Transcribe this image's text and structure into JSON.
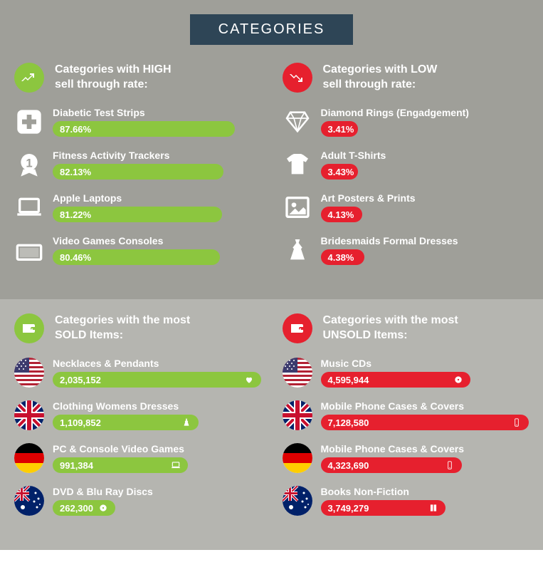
{
  "colors": {
    "green": "#8cc63f",
    "red": "#e6202e",
    "headerBg": "#2e4556",
    "topBg": "#9f9f99",
    "bottomBg": "#b5b5b0",
    "white": "#ffffff"
  },
  "title": "CATEGORIES",
  "top": {
    "left": {
      "heading": "Categories with HIGH\nsell through rate:",
      "items": [
        {
          "label": "Diabetic Test Strips",
          "value": "87.66%",
          "pct": 87.66,
          "icon": "medical"
        },
        {
          "label": "Fitness Activity Trackers",
          "value": "82.13%",
          "pct": 82.13,
          "icon": "medal"
        },
        {
          "label": "Apple Laptops",
          "value": "81.22%",
          "pct": 81.22,
          "icon": "laptop"
        },
        {
          "label": "Video Games Consoles",
          "value": "80.46%",
          "pct": 80.46,
          "icon": "console"
        }
      ]
    },
    "right": {
      "heading": "Categories with LOW\nsell through rate:",
      "items": [
        {
          "label": "Diamond Rings (Engadgement)",
          "value": "3.41%",
          "pct": 18,
          "icon": "diamond"
        },
        {
          "label": "Adult T-Shirts",
          "value": "3.43%",
          "pct": 18,
          "icon": "tshirt"
        },
        {
          "label": "Art Posters & Prints",
          "value": "4.13%",
          "pct": 20,
          "icon": "picture"
        },
        {
          "label": "Bridesmaids Formal Dresses",
          "value": "4.38%",
          "pct": 21,
          "icon": "dress"
        }
      ]
    }
  },
  "bottom": {
    "left": {
      "heading": "Categories with the most\nSOLD Items:",
      "items": [
        {
          "label": "Necklaces & Pendants",
          "value": "2,035,152",
          "pct": 100,
          "flag": "us",
          "miniIcon": "heart"
        },
        {
          "label": "Clothing Womens Dresses",
          "value": "1,109,852",
          "pct": 70,
          "flag": "uk",
          "miniIcon": "dress"
        },
        {
          "label": "PC & Console Video Games",
          "value": "991,384",
          "pct": 65,
          "flag": "de",
          "miniIcon": "laptop"
        },
        {
          "label": "DVD & Blu Ray Discs",
          "value": "262,300",
          "pct": 30,
          "flag": "au",
          "miniIcon": "disc"
        }
      ]
    },
    "right": {
      "heading": "Categories with the most\nUNSOLD Items:",
      "items": [
        {
          "label": "Music CDs",
          "value": "4,595,944",
          "pct": 72,
          "flag": "us",
          "miniIcon": "disc"
        },
        {
          "label": "Mobile Phone Cases & Covers",
          "value": "7,128,580",
          "pct": 100,
          "flag": "uk",
          "miniIcon": "phone"
        },
        {
          "label": "Mobile Phone Cases & Covers",
          "value": "4,323,690",
          "pct": 68,
          "flag": "de",
          "miniIcon": "phone"
        },
        {
          "label": "Books Non-Fiction",
          "value": "3,749,279",
          "pct": 60,
          "flag": "au",
          "miniIcon": "book"
        }
      ]
    }
  }
}
